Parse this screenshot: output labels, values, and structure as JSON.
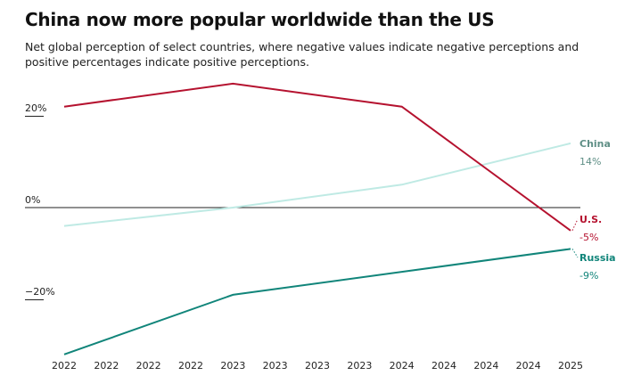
{
  "chart_data": {
    "type": "line",
    "title": "China now more popular worldwide than the US",
    "subtitle": "Net global perception of select countries, where negative values indicate negative perceptions and positive percentages indicate positive perceptions.",
    "x": [
      0,
      4,
      8,
      12
    ],
    "x_tick_labels": [
      "2022",
      "2022",
      "2022",
      "2022",
      "2023",
      "2023",
      "2023",
      "2023",
      "2024",
      "2024",
      "2024",
      "2024",
      "2025"
    ],
    "y_ticks": [
      {
        "value": 20,
        "label": "20%"
      },
      {
        "value": 0,
        "label": "0%"
      },
      {
        "value": -20,
        "label": "−20%"
      }
    ],
    "ylim": [
      -34,
      28
    ],
    "series": [
      {
        "name": "U.S.",
        "values": [
          22,
          27,
          22,
          -5
        ],
        "end_label": "-5%",
        "color": "#b5122f",
        "label_color": "#b5122f"
      },
      {
        "name": "China",
        "values": [
          -4,
          0,
          5,
          14
        ],
        "end_label": "14%",
        "color": "#bfeae4",
        "label_color": "#5f8f86"
      },
      {
        "name": "Russia",
        "values": [
          -32,
          -19,
          -14,
          -9
        ],
        "end_label": "-9%",
        "color": "#11857a",
        "label_color": "#11857a"
      }
    ]
  }
}
